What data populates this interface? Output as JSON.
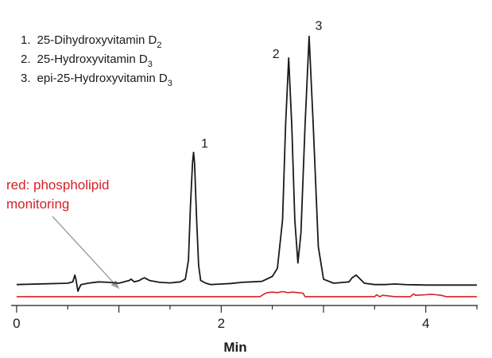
{
  "chart_data": {
    "type": "line",
    "title": "",
    "xlabel": "Min",
    "ylabel": "",
    "xlim": [
      -0.03,
      4.5
    ],
    "ylim": [
      -0.05,
      1.0
    ],
    "x_ticks": [
      0,
      2,
      4
    ],
    "x_tick_labels": [
      "0",
      "2",
      "4"
    ],
    "grid": false,
    "legend": {
      "placement": "top-left",
      "entries": [
        {
          "num": "1.",
          "text": "25-Dihydroxyvitamin D",
          "sub": "2"
        },
        {
          "num": "2.",
          "text": "25-Hydroxyvitamin D",
          "sub": "3"
        },
        {
          "num": "3.",
          "text": "epi-25-Hydroxyvitamin D",
          "sub": "3"
        }
      ]
    },
    "peaks": [
      {
        "label": "1",
        "x": 1.73,
        "height": 0.5
      },
      {
        "label": "2",
        "x": 2.66,
        "height": 0.85
      },
      {
        "label": "3",
        "x": 2.86,
        "height": 0.93
      }
    ],
    "series": [
      {
        "name": "",
        "color": "#1a1a1a",
        "x": [
          0,
          0.5,
          0.55,
          0.57,
          0.58,
          0.6,
          0.61,
          0.63,
          0.7,
          0.8,
          0.9,
          1.0,
          1.05,
          1.1,
          1.12,
          1.15,
          1.2,
          1.22,
          1.25,
          1.3,
          1.4,
          1.5,
          1.6,
          1.65,
          1.68,
          1.7,
          1.72,
          1.73,
          1.74,
          1.76,
          1.78,
          1.8,
          1.85,
          1.9,
          2.0,
          2.1,
          2.2,
          2.3,
          2.4,
          2.5,
          2.55,
          2.6,
          2.63,
          2.66,
          2.69,
          2.72,
          2.75,
          2.78,
          2.82,
          2.86,
          2.9,
          2.95,
          3.0,
          3.1,
          3.2,
          3.25,
          3.28,
          3.32,
          3.36,
          3.4,
          3.5,
          3.6,
          3.7,
          3.8,
          4.0,
          4.2,
          4.4,
          4.5
        ],
        "y": [
          0.01,
          0.015,
          0.02,
          0.045,
          0.03,
          -0.015,
          -0.005,
          0.01,
          0.015,
          0.02,
          0.018,
          0.015,
          0.02,
          0.025,
          0.03,
          0.02,
          0.025,
          0.03,
          0.035,
          0.025,
          0.018,
          0.016,
          0.02,
          0.03,
          0.1,
          0.3,
          0.46,
          0.5,
          0.46,
          0.25,
          0.08,
          0.025,
          0.015,
          0.01,
          0.012,
          0.014,
          0.018,
          0.02,
          0.022,
          0.04,
          0.07,
          0.25,
          0.6,
          0.85,
          0.6,
          0.25,
          0.09,
          0.2,
          0.6,
          0.93,
          0.6,
          0.15,
          0.03,
          0.015,
          0.018,
          0.02,
          0.035,
          0.045,
          0.03,
          0.015,
          0.01,
          0.01,
          0.012,
          0.01,
          0.008,
          0.008,
          0.008,
          0.008
        ]
      },
      {
        "name": "red: phospholipid monitoring",
        "color": "#d62027",
        "x": [
          0,
          2.38,
          2.42,
          2.45,
          2.5,
          2.55,
          2.6,
          2.65,
          2.7,
          2.75,
          2.8,
          2.82,
          2.86,
          2.9,
          2.95,
          3.0,
          3.5,
          3.52,
          3.55,
          3.58,
          3.7,
          3.8,
          3.85,
          3.88,
          3.9,
          4.0,
          4.05,
          4.1,
          4.15,
          4.2,
          4.5
        ],
        "y": [
          -0.035,
          -0.035,
          -0.025,
          -0.02,
          -0.018,
          -0.02,
          -0.016,
          -0.02,
          -0.018,
          -0.02,
          -0.022,
          -0.035,
          -0.035,
          -0.035,
          -0.035,
          -0.035,
          -0.035,
          -0.028,
          -0.035,
          -0.03,
          -0.035,
          -0.035,
          -0.035,
          -0.025,
          -0.03,
          -0.028,
          -0.026,
          -0.028,
          -0.03,
          -0.035,
          -0.035
        ]
      }
    ],
    "annotation": {
      "line1": "red: phospholipid",
      "line2": "monitoring",
      "color": "#d62027",
      "arrow_target_x": 1.0,
      "arrow_target_y": -0.005
    }
  }
}
